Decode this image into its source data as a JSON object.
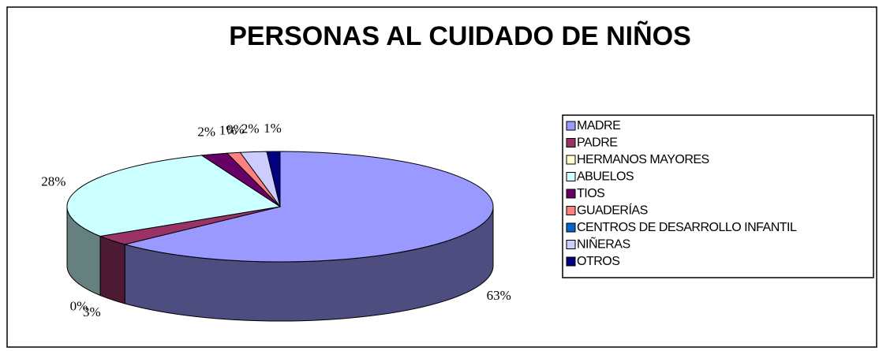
{
  "chart_data": {
    "type": "pie3d",
    "title": "PERSONAS AL CUIDADO DE NIÑOS",
    "categories": [
      "MADRE",
      "PADRE",
      "HERMANOS MAYORES",
      "ABUELOS",
      "TIOS",
      "GUADERÍAS",
      "CENTROS DE DESARROLLO INFANTIL",
      "NIÑERAS",
      "OTROS"
    ],
    "values": [
      63,
      3,
      0,
      28,
      2,
      1,
      0,
      2,
      1
    ],
    "value_labels": [
      "63%",
      "3%",
      "0%",
      "28%",
      "2%",
      "1%",
      "0%",
      "2%",
      "1%"
    ],
    "colors": [
      "#9999ff",
      "#993366",
      "#ffffcc",
      "#ccffff",
      "#660066",
      "#ff8080",
      "#0066cc",
      "#ccccff",
      "#000080"
    ],
    "legend": "right"
  }
}
